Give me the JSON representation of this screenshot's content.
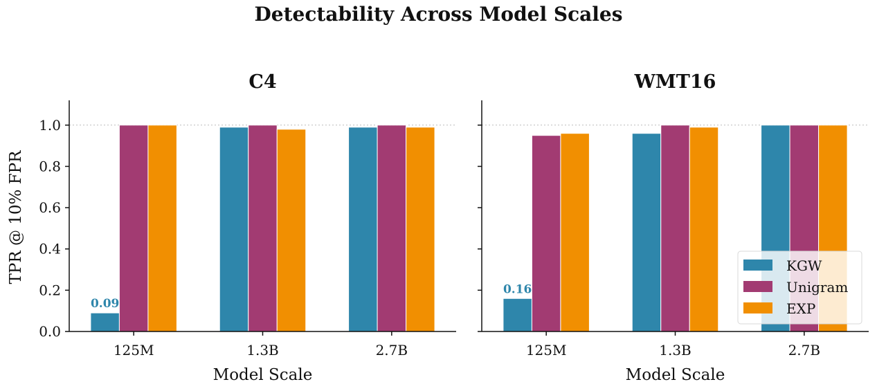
{
  "figure_title": "Detectability Across Model Scales",
  "colors": {
    "KGW": "#2e86ab",
    "Unigram": "#a23b72",
    "EXP": "#f18f01"
  },
  "chart_data": [
    {
      "type": "bar",
      "title": "C4",
      "xlabel": "Model Scale",
      "ylabel": "TPR @ 10% FPR",
      "categories": [
        "125M",
        "1.3B",
        "2.7B"
      ],
      "ylim": [
        0,
        1.12
      ],
      "yticks": [
        "0.0",
        "0.2",
        "0.4",
        "0.6",
        "0.8",
        "1.0"
      ],
      "reference_line": 1.0,
      "series": [
        {
          "name": "KGW",
          "values": [
            0.09,
            0.99,
            0.99
          ]
        },
        {
          "name": "Unigram",
          "values": [
            1.0,
            1.0,
            1.0
          ]
        },
        {
          "name": "EXP",
          "values": [
            1.0,
            0.98,
            0.99
          ]
        }
      ],
      "annotations": [
        {
          "series": "KGW",
          "category": "125M",
          "text": "0.09"
        }
      ]
    },
    {
      "type": "bar",
      "title": "WMT16",
      "xlabel": "Model Scale",
      "ylabel": "",
      "categories": [
        "125M",
        "1.3B",
        "2.7B"
      ],
      "ylim": [
        0,
        1.12
      ],
      "yticks": [
        "0.0",
        "0.2",
        "0.4",
        "0.6",
        "0.8",
        "1.0"
      ],
      "reference_line": 1.0,
      "series": [
        {
          "name": "KGW",
          "values": [
            0.16,
            0.96,
            1.0
          ]
        },
        {
          "name": "Unigram",
          "values": [
            0.95,
            1.0,
            1.0
          ]
        },
        {
          "name": "EXP",
          "values": [
            0.96,
            0.99,
            1.0
          ]
        }
      ],
      "annotations": [
        {
          "series": "KGW",
          "category": "125M",
          "text": "0.16"
        }
      ],
      "legend": {
        "placement": "lower-right",
        "entries": [
          "KGW",
          "Unigram",
          "EXP"
        ]
      }
    }
  ]
}
